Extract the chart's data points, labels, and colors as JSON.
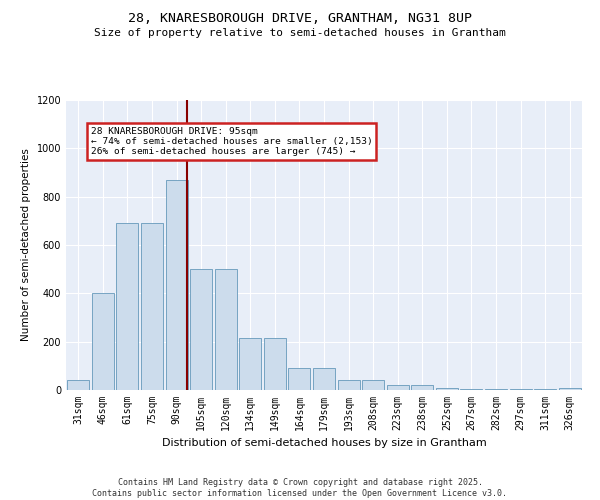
{
  "title1": "28, KNARESBOROUGH DRIVE, GRANTHAM, NG31 8UP",
  "title2": "Size of property relative to semi-detached houses in Grantham",
  "xlabel": "Distribution of semi-detached houses by size in Grantham",
  "ylabel": "Number of semi-detached properties",
  "bar_labels": [
    "31sqm",
    "46sqm",
    "61sqm",
    "75sqm",
    "90sqm",
    "105sqm",
    "120sqm",
    "134sqm",
    "149sqm",
    "164sqm",
    "179sqm",
    "193sqm",
    "208sqm",
    "223sqm",
    "238sqm",
    "252sqm",
    "267sqm",
    "282sqm",
    "297sqm",
    "311sqm",
    "326sqm"
  ],
  "bar_values": [
    40,
    400,
    690,
    690,
    870,
    500,
    500,
    215,
    215,
    90,
    90,
    40,
    40,
    20,
    20,
    10,
    5,
    5,
    5,
    5,
    10
  ],
  "bar_color": "#ccdcec",
  "bar_edge_color": "#6699bb",
  "annotation_title": "28 KNARESBOROUGH DRIVE: 95sqm",
  "annotation_line1": "← 74% of semi-detached houses are smaller (2,153)",
  "annotation_line2": "26% of semi-detached houses are larger (745) →",
  "vline_color": "#880000",
  "vline_x_index": 4.42,
  "annotation_box_facecolor": "#ffffff",
  "annotation_box_edgecolor": "#cc2222",
  "background_color": "#e8eef8",
  "footer": "Contains HM Land Registry data © Crown copyright and database right 2025.\nContains public sector information licensed under the Open Government Licence v3.0.",
  "ylim": [
    0,
    1200
  ],
  "yticks": [
    0,
    200,
    400,
    600,
    800,
    1000,
    1200
  ],
  "grid_color": "#ffffff",
  "title1_fontsize": 9.5,
  "title2_fontsize": 8,
  "ylabel_fontsize": 7.5,
  "xlabel_fontsize": 8,
  "tick_fontsize": 7,
  "footer_fontsize": 6
}
